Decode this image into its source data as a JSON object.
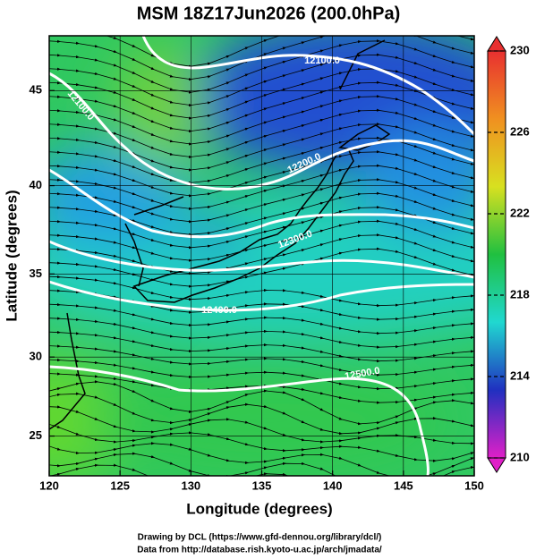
{
  "header": {
    "title": "MSM 18Z17Jun2026 (200.0hPa)"
  },
  "map": {
    "type": "streamline-map",
    "x_label": "Longitude (degrees)",
    "y_label": "Latitude  (degrees)",
    "xlim": [
      120,
      150
    ],
    "xticks": [
      120,
      125,
      130,
      135,
      140,
      145,
      150
    ],
    "ylim": [
      22.4,
      47.7
    ],
    "yticks": [
      25,
      30,
      35,
      40,
      45
    ],
    "y_scale": "mercator",
    "grid": true,
    "contour_labels": [
      "12100.0",
      "12100.0",
      "12200.0",
      "12300.0",
      "12400.0",
      "12500.0"
    ]
  },
  "colorbar": {
    "lim": [
      210,
      230
    ],
    "ticks": [
      210,
      214,
      218,
      222,
      226,
      230
    ],
    "colors": [
      "#e020c8",
      "#2030c0",
      "#20d8d0",
      "#20c040",
      "#d8e020",
      "#f09020",
      "#e83030"
    ]
  },
  "footer": {
    "lines": [
      "Drawing by DCL (https://www.gfd-dennou.org/library/dcl/)",
      "Data from http://database.rish.kyoto-u.ac.jp/arch/jmadata/"
    ]
  }
}
